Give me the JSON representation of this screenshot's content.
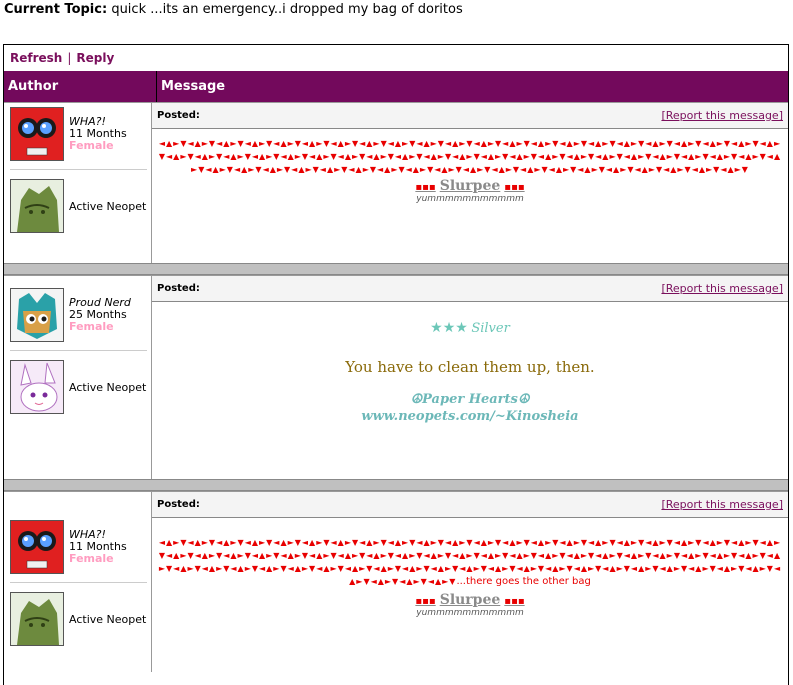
{
  "topic": {
    "label": "Current Topic:",
    "text": "quick ...its an emergency..i dropped my bag of doritos"
  },
  "actions": {
    "refresh": "Refresh",
    "sep": "|",
    "reply": "Reply"
  },
  "columns": {
    "author": "Author",
    "message": "Message"
  },
  "posts": [
    {
      "username": "WHA?!",
      "age": "11 Months",
      "gender": "Female",
      "pet_label": "Active Neopet",
      "posted": "Posted:",
      "report": "[Report this message]",
      "triangles": "◄▲►▼◄▲►▼◄▲►▼◄▲►▼◄▲►▼◄▲►▼◄▲►▼◄▲►▼◄▲►▼◄▲►▼◄▲►▼◄▲►▼◄▲►▼◄▲►▼◄▲►▼◄▲►▼◄▲►▼◄▲►▼◄▲►▼◄▲►▼◄▲►▼◄▲►▼◄▲►▼◄▲►▼◄▲►▼◄▲►▼◄▲►▼◄▲►▼◄▲►▼◄▲►▼◄▲►▼◄▲►▼◄▲►▼◄▲►▼◄▲►▼◄▲►▼◄▲►▼◄▲►▼◄▲►▼◄▲►▼◄▲►▼◄▲►▼◄▲►▼◄▲►▼◄▲►▼◄▲►▼◄▲►▼◄▲►▼◄▲►▼◄▲►▼◄▲►▼◄▲►▼◄▲►▼◄▲►▼◄▲►▼◄▲►▼◄▲►▼◄▲►▼◄▲►▼◄▲►▼◄▲►▼◄▲►▼◄▲►▼",
      "sig_name": "Slurpee",
      "sig_dash": "▪▪▪",
      "sig_text": "yummmmmmmmmmm"
    },
    {
      "username": "Proud Nerd",
      "age": "25 Months",
      "gender": "Female",
      "pet_label": "Active Neopet",
      "posted": "Posted:",
      "report": "[Report this message]",
      "stars": "★★★",
      "silver": "Silver",
      "message": "You have to clean them up, then.",
      "paper": "☮Paper Hearts☮",
      "link": "www.neopets.com/~Kinosheia"
    },
    {
      "username": "WHA?!",
      "age": "11 Months",
      "gender": "Female",
      "pet_label": "Active Neopet",
      "posted": "Posted:",
      "report": "[Report this message]",
      "triangles": "◄▲►▼◄▲►▼◄▲►▼◄▲►▼◄▲►▼◄▲►▼◄▲►▼◄▲►▼◄▲►▼◄▲►▼◄▲►▼◄▲►▼◄▲►▼◄▲►▼◄▲►▼◄▲►▼◄▲►▼◄▲►▼◄▲►▼◄▲►▼◄▲►▼◄▲►▼◄▲►▼◄▲►▼◄▲►▼◄▲►▼◄▲►▼◄▲►▼◄▲►▼◄▲►▼◄▲►▼◄▲►▼◄▲►▼◄▲►▼◄▲►▼◄▲►▼◄▲►▼◄▲►▼◄▲►▼◄▲►▼◄▲►▼◄▲►▼◄▲►▼◄▲►▼◄▲►▼◄▲►▼◄▲►▼◄▲►▼◄▲►▼◄▲►▼◄▲►▼◄▲►▼◄▲►▼◄▲►▼◄▲►▼◄▲►▼◄▲►▼◄▲►▼◄▲►▼◄▲►▼◄▲►▼◄▲►▼◄▲►▼◄▲►▼◄▲►▼◄▲►▼◄▲►▼◄▲►▼◄▲►▼",
      "tail": "...there goes the other bag",
      "sig_name": "Slurpee",
      "sig_dash": "▪▪▪",
      "sig_text": "yummmmmmmmmmm"
    }
  ],
  "colors": {
    "header_bg": "#73095c",
    "link": "#7a0f5c",
    "triangle": "#e80000",
    "gender": "#ff9cc0",
    "avatar_red": "#e02020",
    "teal": "#6cc7b8",
    "brown": "#8a6a0a"
  },
  "icons": {
    "avatar1": "red-blob-avatar-icon",
    "pet1": "green-pet-icon",
    "avatar2": "pet-face-avatar-icon",
    "pet2": "white-bunny-pet-icon"
  }
}
